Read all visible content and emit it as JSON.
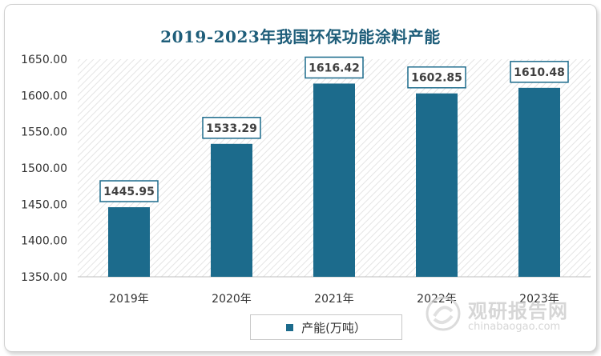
{
  "chart_data": {
    "type": "bar",
    "title": "2019-2023年我国环保功能涂料产能",
    "categories": [
      "2019年",
      "2020年",
      "2021年",
      "2022年",
      "2023年"
    ],
    "series": [
      {
        "name": "产能(万吨）",
        "values": [
          1445.95,
          1533.29,
          1616.42,
          1602.85,
          1610.48
        ]
      }
    ],
    "data_labels": [
      "1445.95",
      "1533.29",
      "1616.42",
      "1602.85",
      "1610.48"
    ],
    "ylim": [
      1350,
      1650
    ],
    "yticks": [
      1350,
      1400,
      1450,
      1500,
      1550,
      1600,
      1650
    ],
    "ytick_labels": [
      "1350.00",
      "1400.00",
      "1450.00",
      "1500.00",
      "1550.00",
      "1600.00",
      "1650.00"
    ],
    "xlabel": "",
    "ylabel": "",
    "legend_position": "bottom",
    "grid": false,
    "plot_background": "diagonal-hatch",
    "colors": {
      "bar": "#1c6b8c",
      "title": "#1f5e7a",
      "label_border": "#1c6b8c"
    }
  },
  "watermark": {
    "cn": "观研报告网",
    "en": "chinabaogao.com"
  }
}
